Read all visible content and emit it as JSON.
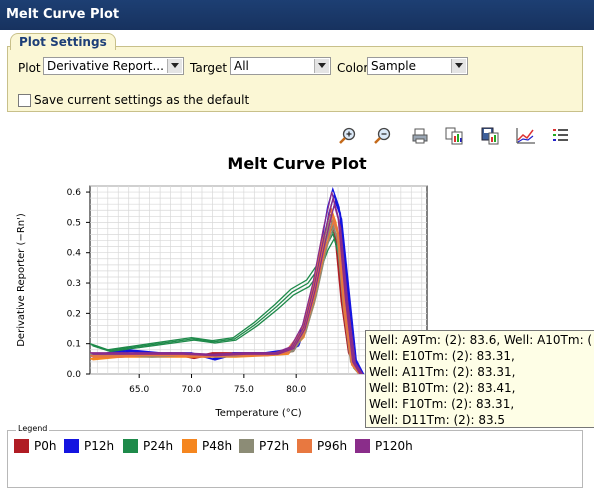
{
  "window": {
    "title": "Melt Curve Plot"
  },
  "settings": {
    "tab_label": "Plot Settings",
    "plot_label": "Plot",
    "plot_value": "Derivative Report...",
    "target_label": "Target",
    "target_value": "All",
    "color_label": "Color",
    "color_value": "Sample",
    "save_default_label": "Save current settings as the default",
    "save_default_checked": false
  },
  "toolbar": {
    "icons": [
      "zoom-in-icon",
      "zoom-out-icon",
      "print-icon",
      "copy-icon",
      "save-icon",
      "plot-properties-icon",
      "list-icon"
    ]
  },
  "chart_data": {
    "type": "line",
    "title": "Melt Curve Plot",
    "xlabel": "Temperature (°C)",
    "ylabel": "Derivative Reporter (−Rn')",
    "xlim": [
      60.3,
      92.5
    ],
    "ylim": [
      0.0,
      0.62
    ],
    "x_ticks": [
      "65.0",
      "70.0",
      "75.0",
      "80.0"
    ],
    "y_ticks": [
      "0.0",
      "0.1",
      "0.2",
      "0.3",
      "0.4",
      "0.5",
      "0.6"
    ],
    "grid": true,
    "series": [
      {
        "name": "P0h",
        "color": "#b01c24",
        "values": [
          [
            60.3,
            0.06
          ],
          [
            63,
            0.06
          ],
          [
            66,
            0.065
          ],
          [
            68,
            0.07
          ],
          [
            70,
            0.055
          ],
          [
            72,
            0.07
          ],
          [
            75,
            0.07
          ],
          [
            78,
            0.07
          ],
          [
            79.5,
            0.08
          ],
          [
            80.5,
            0.14
          ],
          [
            81.5,
            0.26
          ],
          [
            82.5,
            0.43
          ],
          [
            83.2,
            0.53
          ],
          [
            83.7,
            0.46
          ],
          [
            84.3,
            0.24
          ],
          [
            85,
            0.07
          ],
          [
            86,
            0.0
          ]
        ]
      },
      {
        "name": "P12h",
        "color": "#1414e0",
        "values": [
          [
            60.3,
            0.06
          ],
          [
            62,
            0.07
          ],
          [
            64,
            0.08
          ],
          [
            67,
            0.07
          ],
          [
            70,
            0.07
          ],
          [
            72,
            0.05
          ],
          [
            74,
            0.07
          ],
          [
            77,
            0.07
          ],
          [
            79,
            0.08
          ],
          [
            80,
            0.1
          ],
          [
            81,
            0.2
          ],
          [
            82,
            0.35
          ],
          [
            83,
            0.55
          ],
          [
            83.5,
            0.61
          ],
          [
            84.1,
            0.55
          ],
          [
            84.8,
            0.3
          ],
          [
            85.5,
            0.05
          ],
          [
            86.2,
            0.0
          ]
        ]
      },
      {
        "name": "P24h",
        "color": "#1e8a4a",
        "values": [
          [
            60.3,
            0.1
          ],
          [
            62,
            0.08
          ],
          [
            64,
            0.09
          ],
          [
            66,
            0.1
          ],
          [
            68,
            0.11
          ],
          [
            70,
            0.12
          ],
          [
            72,
            0.11
          ],
          [
            74,
            0.12
          ],
          [
            76,
            0.17
          ],
          [
            78,
            0.23
          ],
          [
            79.5,
            0.28
          ],
          [
            81,
            0.31
          ],
          [
            82,
            0.36
          ],
          [
            82.8,
            0.44
          ],
          [
            83.4,
            0.48
          ],
          [
            84,
            0.4
          ],
          [
            84.8,
            0.15
          ],
          [
            85.5,
            0.02
          ],
          [
            86,
            0.0
          ]
        ]
      },
      {
        "name": "P48h",
        "color": "#f5861f",
        "values": [
          [
            60.3,
            0.05
          ],
          [
            63,
            0.06
          ],
          [
            66,
            0.06
          ],
          [
            68,
            0.06
          ],
          [
            71,
            0.06
          ],
          [
            74,
            0.06
          ],
          [
            77,
            0.065
          ],
          [
            79,
            0.07
          ],
          [
            80.5,
            0.13
          ],
          [
            81.5,
            0.25
          ],
          [
            82.5,
            0.42
          ],
          [
            83.3,
            0.55
          ],
          [
            83.8,
            0.5
          ],
          [
            84.4,
            0.3
          ],
          [
            85.2,
            0.05
          ],
          [
            86,
            0.0
          ]
        ]
      },
      {
        "name": "P72h",
        "color": "#8c8c76",
        "values": [
          [
            60.3,
            0.065
          ],
          [
            63,
            0.065
          ],
          [
            66,
            0.06
          ],
          [
            69,
            0.065
          ],
          [
            72,
            0.06
          ],
          [
            75,
            0.065
          ],
          [
            78,
            0.07
          ],
          [
            79.5,
            0.08
          ],
          [
            80.7,
            0.15
          ],
          [
            81.7,
            0.28
          ],
          [
            82.7,
            0.45
          ],
          [
            83.3,
            0.52
          ],
          [
            83.9,
            0.45
          ],
          [
            84.5,
            0.22
          ],
          [
            85.2,
            0.04
          ],
          [
            86,
            0.0
          ]
        ]
      },
      {
        "name": "P96h",
        "color": "#e87840",
        "values": [
          [
            60.3,
            0.06
          ],
          [
            63,
            0.06
          ],
          [
            65,
            0.065
          ],
          [
            68,
            0.065
          ],
          [
            71,
            0.06
          ],
          [
            74,
            0.065
          ],
          [
            77,
            0.065
          ],
          [
            79,
            0.075
          ],
          [
            80.5,
            0.14
          ],
          [
            81.5,
            0.27
          ],
          [
            82.5,
            0.44
          ],
          [
            83.3,
            0.54
          ],
          [
            83.9,
            0.48
          ],
          [
            84.6,
            0.2
          ],
          [
            85.3,
            0.03
          ],
          [
            86,
            0.0
          ]
        ]
      },
      {
        "name": "P120h",
        "color": "#8a2d8a",
        "values": [
          [
            60.3,
            0.07
          ],
          [
            63,
            0.07
          ],
          [
            66,
            0.07
          ],
          [
            69,
            0.07
          ],
          [
            72,
            0.065
          ],
          [
            75,
            0.07
          ],
          [
            78,
            0.07
          ],
          [
            79.5,
            0.09
          ],
          [
            80.6,
            0.16
          ],
          [
            81.6,
            0.3
          ],
          [
            82.6,
            0.48
          ],
          [
            83.4,
            0.6
          ],
          [
            84,
            0.52
          ],
          [
            84.7,
            0.25
          ],
          [
            85.4,
            0.04
          ],
          [
            86.1,
            0.0
          ]
        ]
      }
    ]
  },
  "tooltip": {
    "lines": [
      "Well: A9Tm: (2): 83.6, Well: A10Tm: (",
      "Well: E10Tm: (2): 83.31,",
      "Well: A11Tm: (2): 83.31,",
      "Well: B10Tm: (2): 83.41,",
      "Well: F10Tm: (2): 83.31,",
      "Well: D11Tm: (2): 83.5"
    ]
  },
  "legend": {
    "title": "Legend",
    "items": [
      {
        "label": "P0h",
        "color": "#b01c24"
      },
      {
        "label": "P12h",
        "color": "#1414e0"
      },
      {
        "label": "P24h",
        "color": "#1e8a4a"
      },
      {
        "label": "P48h",
        "color": "#f5861f"
      },
      {
        "label": "P72h",
        "color": "#8c8c76"
      },
      {
        "label": "P96h",
        "color": "#e87840"
      },
      {
        "label": "P120h",
        "color": "#8a2d8a"
      }
    ]
  }
}
